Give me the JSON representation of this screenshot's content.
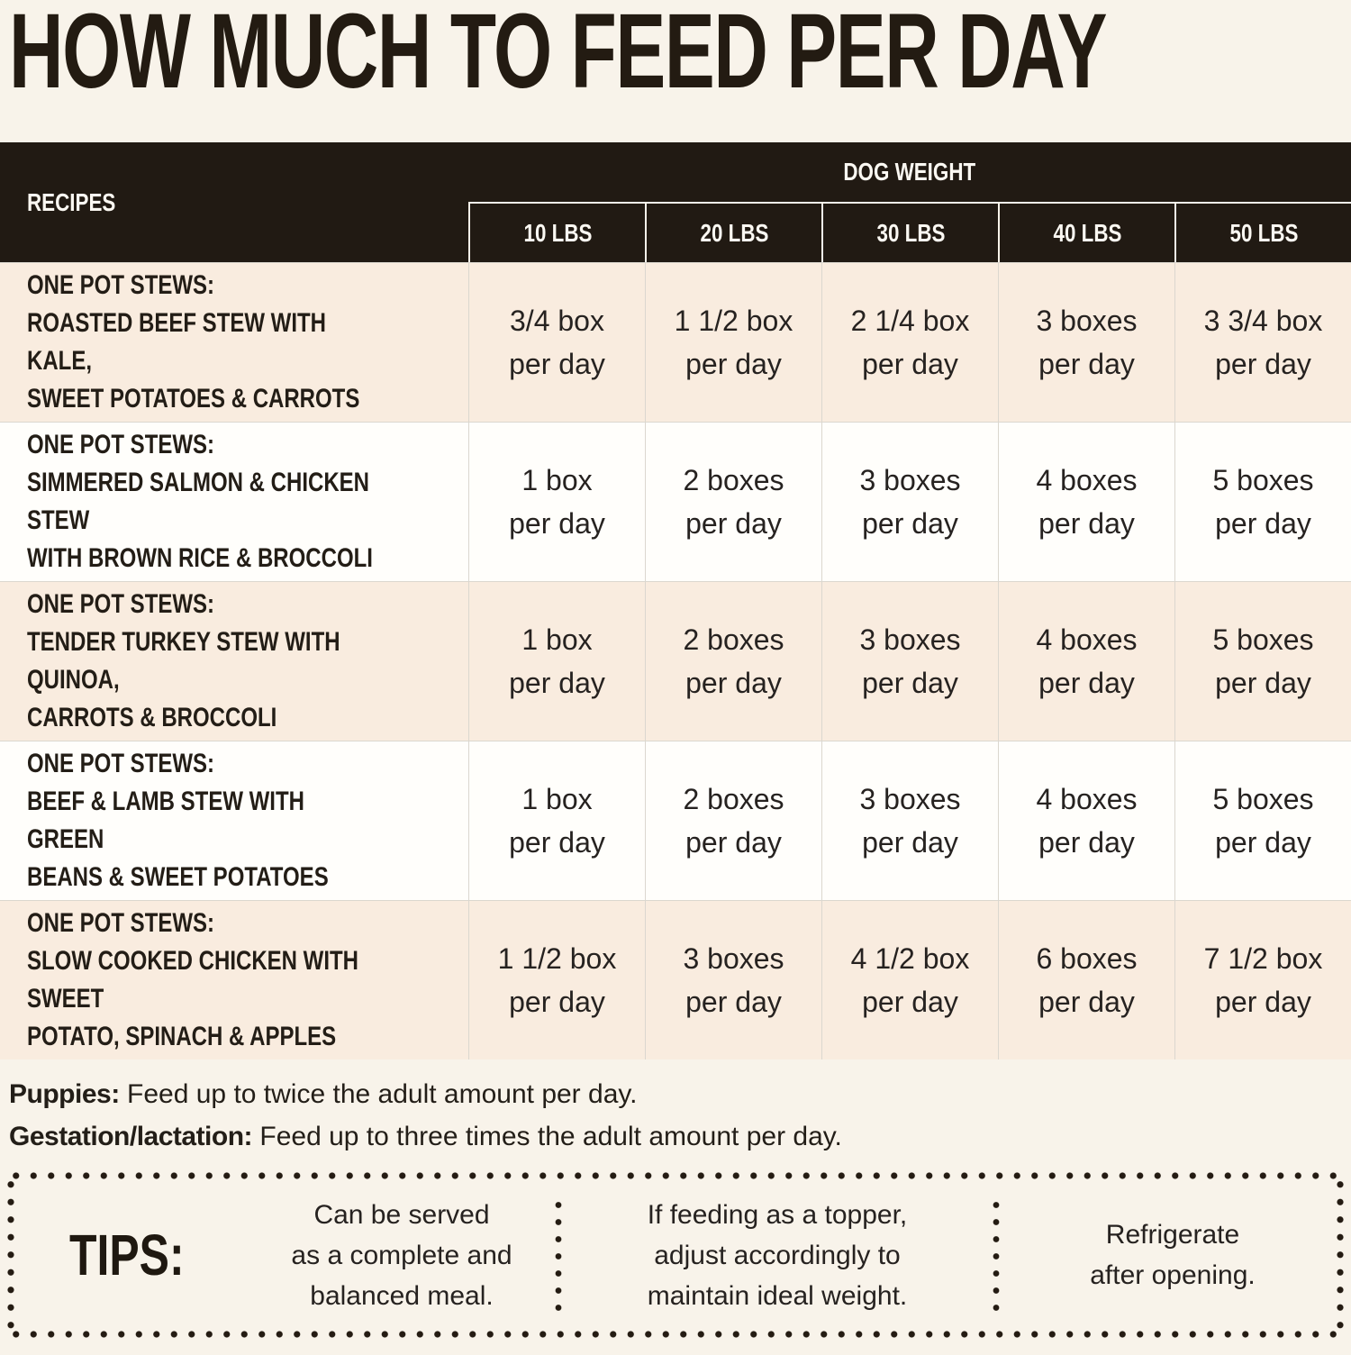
{
  "title": "HOW MUCH TO FEED PER DAY",
  "table": {
    "recipes_header": "RECIPES",
    "group_header": "DOG WEIGHT",
    "weight_columns": [
      "10 LBS",
      "20 LBS",
      "30 LBS",
      "40 LBS",
      "50 LBS"
    ],
    "rows": [
      {
        "name": "ONE POT STEWS:\nROASTED BEEF STEW WITH KALE,\nSWEET POTATOES & CARROTS",
        "values": [
          "3/4 box\nper day",
          "1 1/2 box\nper day",
          "2 1/4 box\nper day",
          "3 boxes\nper day",
          "3 3/4 box\nper day"
        ]
      },
      {
        "name": "ONE POT STEWS:\nSIMMERED SALMON & CHICKEN STEW\nWITH BROWN RICE & BROCCOLI",
        "values": [
          "1 box\nper day",
          "2 boxes\nper day",
          "3 boxes\nper day",
          "4 boxes\nper day",
          "5 boxes\nper day"
        ]
      },
      {
        "name": "ONE POT STEWS:\nTENDER TURKEY STEW WITH QUINOA,\nCARROTS & BROCCOLI",
        "values": [
          "1 box\nper day",
          "2 boxes\nper day",
          "3 boxes\nper day",
          "4 boxes\nper day",
          "5 boxes\nper day"
        ]
      },
      {
        "name": "ONE POT STEWS:\nBEEF & LAMB STEW WITH GREEN\nBEANS & SWEET POTATOES",
        "values": [
          "1 box\nper day",
          "2 boxes\nper day",
          "3 boxes\nper day",
          "4 boxes\nper day",
          "5 boxes\nper day"
        ]
      },
      {
        "name": "ONE POT STEWS:\nSLOW COOKED CHICKEN WITH SWEET\nPOTATO, SPINACH & APPLES",
        "values": [
          "1 1/2 box\nper day",
          "3 boxes\nper day",
          "4 1/2 box\nper day",
          "6 boxes\nper day",
          "7 1/2 box\nper day"
        ]
      }
    ]
  },
  "notes": [
    {
      "label": "Puppies:",
      "text": "Feed up to twice the adult amount per day."
    },
    {
      "label": "Gestation/lactation:",
      "text": "Feed up to three times the adult amount per day."
    }
  ],
  "tips": {
    "label": "TIPS:",
    "items": [
      "Can be served\nas a complete and\nbalanced meal.",
      "If feeding as a topper,\nadjust accordingly to\nmaintain ideal weight.",
      "Refrigerate\nafter opening."
    ]
  },
  "colors": {
    "background": "#f8f3ea",
    "header_bg": "#211a13",
    "header_text": "#fbf8f2",
    "row_cream": "#f9ecdf",
    "row_white": "#fffefb",
    "body_text": "#241f1a",
    "grid_line": "#dbd7cf",
    "dot_color": "#241b12"
  },
  "chart_data": {
    "type": "table",
    "title": "HOW MUCH TO FEED PER DAY",
    "column_group": "DOG WEIGHT",
    "columns": [
      "RECIPES",
      "10 LBS",
      "20 LBS",
      "30 LBS",
      "40 LBS",
      "50 LBS"
    ],
    "rows": [
      [
        "ONE POT STEWS: ROASTED BEEF STEW WITH KALE, SWEET POTATOES & CARROTS",
        "3/4 box per day",
        "1 1/2 box per day",
        "2 1/4 box per day",
        "3 boxes per day",
        "3 3/4 box per day"
      ],
      [
        "ONE POT STEWS: SIMMERED SALMON & CHICKEN STEW WITH BROWN RICE & BROCCOLI",
        "1 box per day",
        "2 boxes per day",
        "3 boxes per day",
        "4 boxes per day",
        "5 boxes per day"
      ],
      [
        "ONE POT STEWS: TENDER TURKEY STEW WITH QUINOA, CARROTS & BROCCOLI",
        "1 box per day",
        "2 boxes per day",
        "3 boxes per day",
        "4 boxes per day",
        "5 boxes per day"
      ],
      [
        "ONE POT STEWS: BEEF & LAMB STEW WITH GREEN BEANS & SWEET POTATOES",
        "1 box per day",
        "2 boxes per day",
        "3 boxes per day",
        "4 boxes per day",
        "5 boxes per day"
      ],
      [
        "ONE POT STEWS: SLOW COOKED CHICKEN WITH SWEET POTATO, SPINACH & APPLES",
        "1 1/2 box per day",
        "3 boxes per day",
        "4 1/2 box per day",
        "6 boxes per day",
        "7 1/2 box per day"
      ]
    ],
    "footnotes": [
      "Puppies: Feed up to twice the adult amount per day.",
      "Gestation/lactation: Feed up to three times the adult amount per day.",
      "TIPS: Can be served as a complete and balanced meal. If feeding as a topper, adjust accordingly to maintain ideal weight. Refrigerate after opening."
    ]
  }
}
